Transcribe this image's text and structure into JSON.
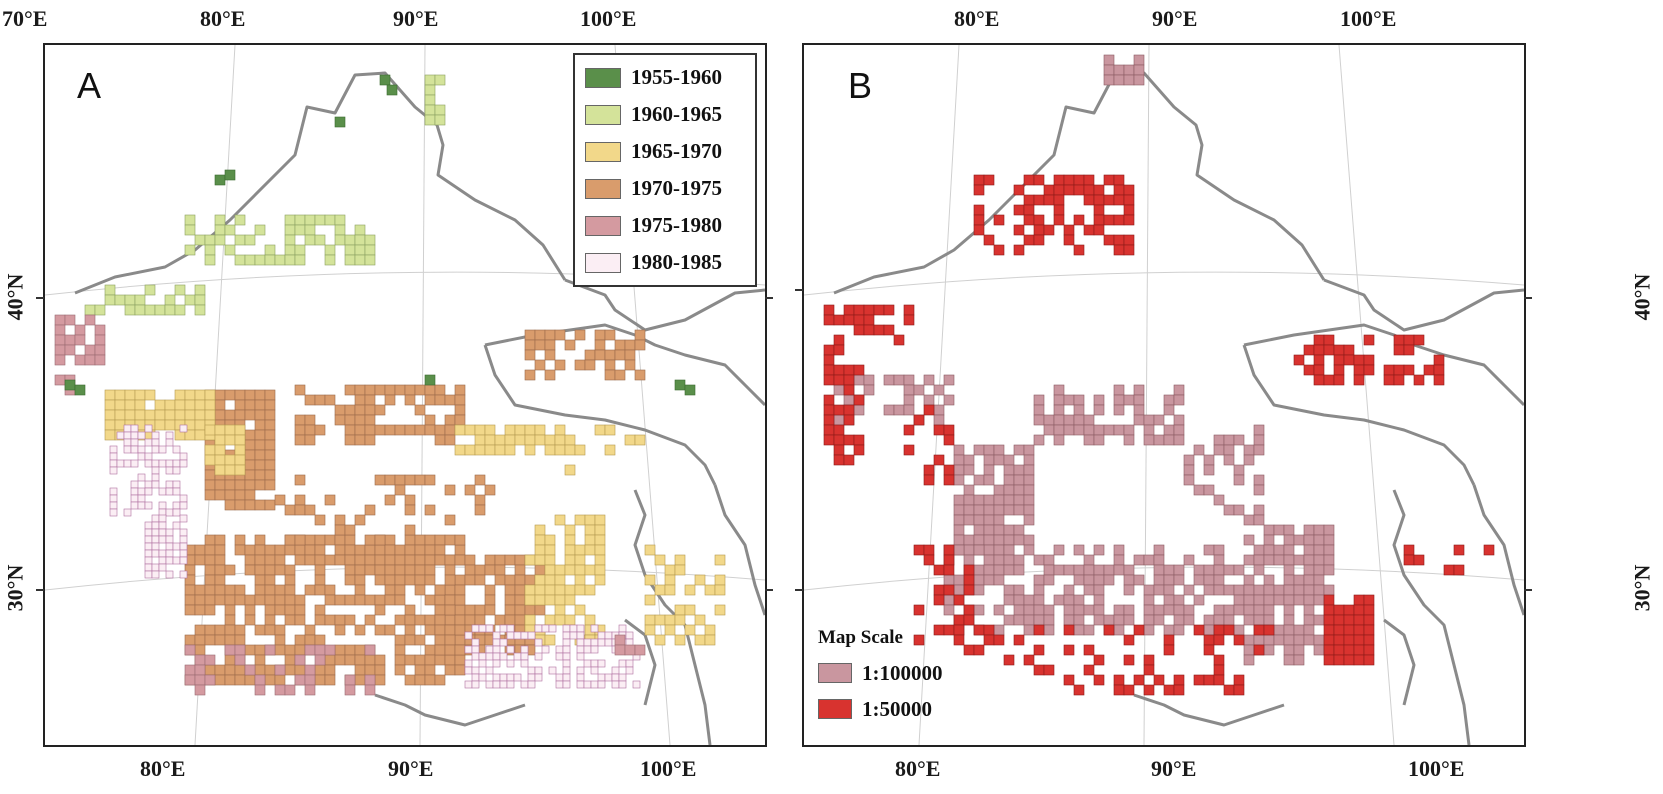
{
  "map": {
    "top_lon_labels_a": [
      "70°E",
      "80°E",
      "90°E",
      "100°E"
    ],
    "bottom_lon_labels_a": [
      "80°E",
      "90°E",
      "100°E"
    ],
    "top_lon_labels_b": [
      "80°E",
      "90°E",
      "100°E"
    ],
    "bottom_lon_labels_b": [
      "80°E",
      "90°E",
      "100°E"
    ],
    "lat_labels": [
      "40°N",
      "30°N"
    ]
  },
  "panel_a": {
    "letter": "A",
    "legend": [
      {
        "label": "1955-1960",
        "color": "#5a8f4a"
      },
      {
        "label": "1960-1965",
        "color": "#d4e39a"
      },
      {
        "label": "1965-1970",
        "color": "#f2d88a"
      },
      {
        "label": "1970-1975",
        "color": "#d99c6c"
      },
      {
        "label": "1975-1980",
        "color": "#d49aa0"
      },
      {
        "label": "1980-1985",
        "color": "#fbeef4"
      }
    ]
  },
  "panel_b": {
    "letter": "B",
    "legend_title": "Map Scale",
    "legend": [
      {
        "label": "1:100000",
        "color": "#c9969f"
      },
      {
        "label": "1:50000",
        "color": "#d8332f"
      }
    ]
  },
  "colors": {
    "border_line": "#8a8a8a",
    "graticule": "#d0d0d0"
  }
}
